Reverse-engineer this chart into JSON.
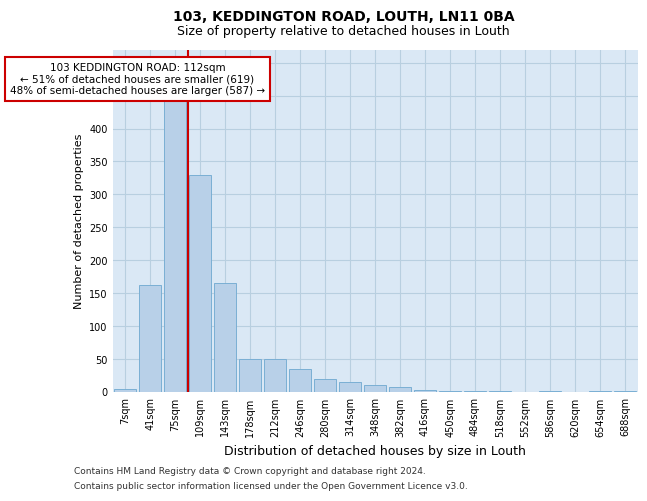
{
  "title1": "103, KEDDINGTON ROAD, LOUTH, LN11 0BA",
  "title2": "Size of property relative to detached houses in Louth",
  "xlabel": "Distribution of detached houses by size in Louth",
  "ylabel": "Number of detached properties",
  "footnote1": "Contains HM Land Registry data © Crown copyright and database right 2024.",
  "footnote2": "Contains public sector information licensed under the Open Government Licence v3.0.",
  "bar_labels": [
    "7sqm",
    "41sqm",
    "75sqm",
    "109sqm",
    "143sqm",
    "178sqm",
    "212sqm",
    "246sqm",
    "280sqm",
    "314sqm",
    "348sqm",
    "382sqm",
    "416sqm",
    "450sqm",
    "484sqm",
    "518sqm",
    "552sqm",
    "586sqm",
    "620sqm",
    "654sqm",
    "688sqm"
  ],
  "bar_values": [
    5,
    162,
    450,
    330,
    165,
    50,
    50,
    35,
    20,
    15,
    10,
    8,
    3,
    2,
    1,
    1,
    0,
    1,
    0,
    1,
    1
  ],
  "bar_color": "#b8d0e8",
  "bar_edgecolor": "#7aafd4",
  "annotation_text": "103 KEDDINGTON ROAD: 112sqm\n← 51% of detached houses are smaller (619)\n48% of semi-detached houses are larger (587) →",
  "annotation_box_facecolor": "#ffffff",
  "annotation_box_edgecolor": "#cc0000",
  "red_line_color": "#cc0000",
  "red_line_x": 2.53,
  "ylim": [
    0,
    520
  ],
  "yticks": [
    0,
    50,
    100,
    150,
    200,
    250,
    300,
    350,
    400,
    450,
    500
  ],
  "grid_color": "#b8cfe0",
  "fig_facecolor": "#ffffff",
  "plot_facecolor": "#dae8f5",
  "title1_fontsize": 10,
  "title2_fontsize": 9,
  "ylabel_fontsize": 8,
  "xlabel_fontsize": 9,
  "tick_fontsize": 7,
  "annot_fontsize": 7.5,
  "footnote_fontsize": 6.5
}
